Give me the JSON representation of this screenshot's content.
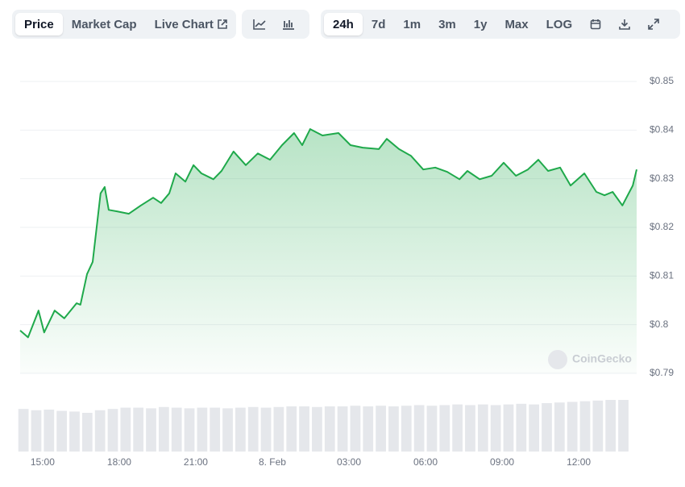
{
  "toolbar": {
    "modes": [
      "Price",
      "Market Cap",
      "Live Chart"
    ],
    "ranges": [
      "24h",
      "7d",
      "1m",
      "3m",
      "1y",
      "Max",
      "LOG"
    ]
  },
  "watermark": "CoinGecko",
  "chart_data": {
    "type": "area",
    "color": "#1fa94b",
    "x": [
      14.12,
      14.43,
      14.84,
      15.06,
      15.47,
      15.85,
      16.33,
      16.48,
      16.74,
      16.96,
      17.27,
      17.43,
      17.59,
      17.91,
      18.38,
      18.85,
      19.33,
      19.64,
      19.96,
      20.21,
      20.59,
      20.91,
      21.22,
      21.69,
      22.01,
      22.48,
      22.96,
      23.43,
      23.91,
      24.38,
      24.85,
      25.17,
      25.48,
      25.96,
      26.59,
      27.06,
      27.54,
      28.17,
      28.48,
      28.96,
      29.43,
      29.91,
      30.38,
      30.85,
      31.33,
      31.64,
      32.12,
      32.59,
      33.06,
      33.54,
      34.01,
      34.42,
      34.8,
      35.27,
      35.68,
      36.22,
      36.69,
      37.01,
      37.33,
      37.71,
      38.12,
      38.27
    ],
    "values": [
      0.7988,
      0.7974,
      0.8029,
      0.7984,
      0.8029,
      0.8013,
      0.8044,
      0.8041,
      0.8104,
      0.8129,
      0.827,
      0.8283,
      0.8236,
      0.8233,
      0.8228,
      0.8245,
      0.8261,
      0.825,
      0.827,
      0.8311,
      0.8294,
      0.8328,
      0.8311,
      0.8299,
      0.8316,
      0.8356,
      0.8328,
      0.8352,
      0.8339,
      0.8369,
      0.8394,
      0.8369,
      0.8402,
      0.8389,
      0.8394,
      0.8369,
      0.8364,
      0.8361,
      0.8382,
      0.8361,
      0.8347,
      0.8319,
      0.8323,
      0.8314,
      0.8299,
      0.8316,
      0.8299,
      0.8306,
      0.8333,
      0.8306,
      0.8319,
      0.8339,
      0.8316,
      0.8323,
      0.8286,
      0.8311,
      0.8273,
      0.8266,
      0.8273,
      0.8245,
      0.8286,
      0.8319
    ],
    "xlim": [
      14.12,
      38.27
    ],
    "xticks": [
      {
        "value": 15,
        "label": "15:00"
      },
      {
        "value": 18,
        "label": "18:00"
      },
      {
        "value": 21,
        "label": "21:00"
      },
      {
        "value": 24,
        "label": "8. Feb"
      },
      {
        "value": 27,
        "label": "03:00"
      },
      {
        "value": 30,
        "label": "06:00"
      },
      {
        "value": 33,
        "label": "09:00"
      },
      {
        "value": 36,
        "label": "12:00"
      }
    ],
    "ylim": [
      0.79,
      0.85
    ],
    "yticks": [
      {
        "value": 0.79,
        "label": "$0.79"
      },
      {
        "value": 0.8,
        "label": "$0.8"
      },
      {
        "value": 0.81,
        "label": "$0.81"
      },
      {
        "value": 0.82,
        "label": "$0.82"
      },
      {
        "value": 0.83,
        "label": "$0.83"
      },
      {
        "value": 0.84,
        "label": "$0.84"
      },
      {
        "value": 0.85,
        "label": "$0.85"
      }
    ],
    "grid": true,
    "volume": {
      "axis": "y2",
      "color": "#e5e7eb",
      "x": [
        14.25,
        14.75,
        15.25,
        15.75,
        16.25,
        16.75,
        17.25,
        17.75,
        18.25,
        18.75,
        19.25,
        19.75,
        20.25,
        20.75,
        21.25,
        21.75,
        22.25,
        22.75,
        23.25,
        23.75,
        24.25,
        24.75,
        25.25,
        25.75,
        26.25,
        26.75,
        27.25,
        27.75,
        28.25,
        28.75,
        29.25,
        29.75,
        30.25,
        30.75,
        31.25,
        31.75,
        32.25,
        32.75,
        33.25,
        33.75,
        34.25,
        34.75,
        35.25,
        35.75,
        36.25,
        36.75,
        37.25,
        37.75
      ],
      "values": [
        66,
        64,
        65,
        63,
        62,
        60,
        64,
        66,
        68,
        68,
        67,
        69,
        68,
        67,
        68,
        68,
        67,
        68,
        69,
        68,
        69,
        70,
        70,
        69,
        70,
        70,
        71,
        70,
        71,
        70,
        71,
        72,
        71,
        72,
        73,
        72,
        73,
        72,
        73,
        74,
        73,
        75,
        76,
        77,
        78,
        79,
        80,
        80
      ]
    },
    "y2lim": [
      0,
      100
    ]
  }
}
